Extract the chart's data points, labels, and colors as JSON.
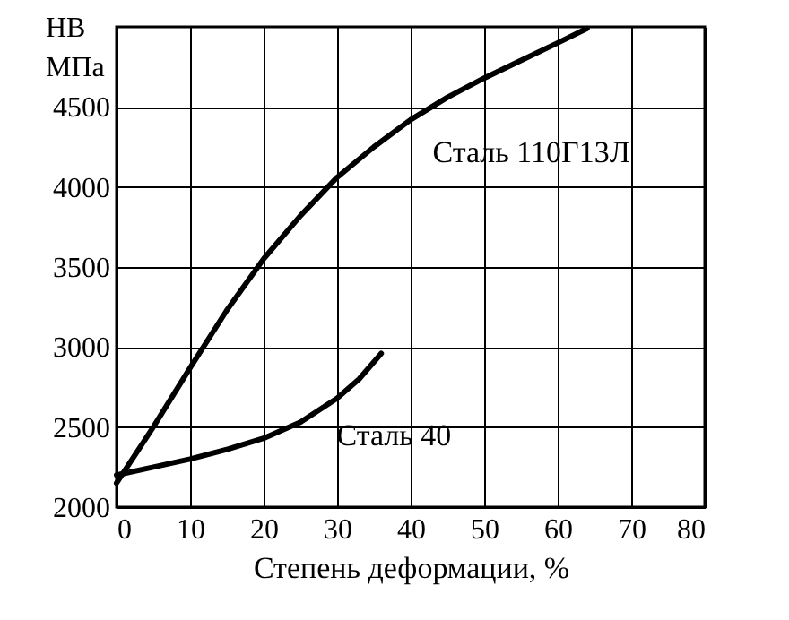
{
  "chart_data": {
    "type": "line",
    "xlabel": "Степень деформации, %",
    "ylabel": "НВ\nМПа",
    "xlim": [
      0,
      80
    ],
    "xticks": [
      0,
      10,
      20,
      30,
      40,
      50,
      60,
      70,
      80
    ],
    "ylim": [
      2000,
      5000
    ],
    "yticks": [
      2000,
      2500,
      3000,
      3500,
      4000,
      4500
    ],
    "grid": true,
    "line_style": "solid",
    "marker": "none",
    "series": [
      {
        "color": "#000000",
        "x": [
          0,
          5,
          10,
          15,
          20,
          25,
          30,
          35,
          40,
          45,
          50,
          55,
          60,
          64
        ],
        "values": [
          2150,
          2500,
          2870,
          3230,
          3550,
          3820,
          4060,
          4250,
          4420,
          4560,
          4680,
          4790,
          4900,
          4990
        ]
      },
      {
        "color": "#000000",
        "x": [
          0,
          5,
          10,
          15,
          20,
          25,
          30,
          33,
          36
        ],
        "values": [
          2200,
          2250,
          2300,
          2360,
          2430,
          2530,
          2680,
          2800,
          2960
        ]
      }
    ],
    "annotations": [
      {
        "text": "Сталь 110Г13Л",
        "x": 42,
        "y": 4480
      },
      {
        "text": "Сталь 40",
        "x": 27,
        "y": 2600
      }
    ]
  }
}
